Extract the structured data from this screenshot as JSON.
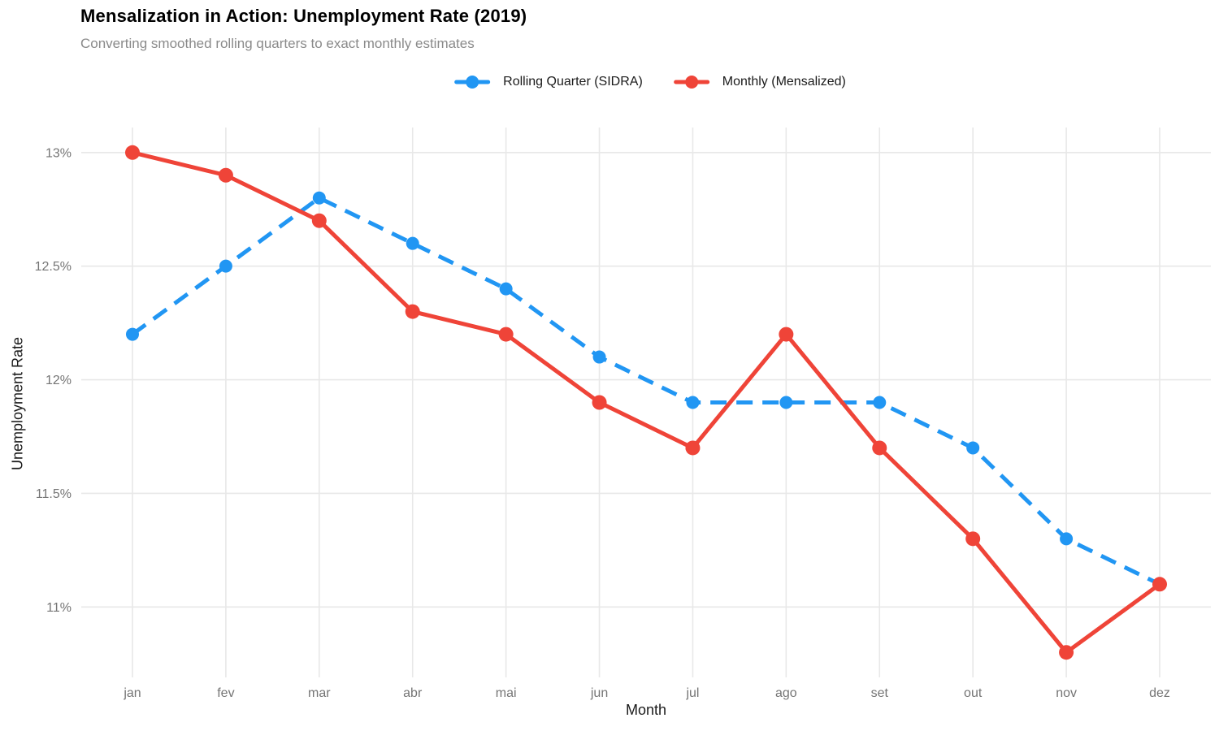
{
  "chart_data": {
    "type": "line",
    "title": "Mensalization in Action: Unemployment Rate (2019)",
    "subtitle": "Converting smoothed rolling quarters to exact monthly estimates",
    "xlabel": "Month",
    "ylabel": "Unemployment Rate",
    "categories": [
      "jan",
      "fev",
      "mar",
      "abr",
      "mai",
      "jun",
      "jul",
      "ago",
      "set",
      "out",
      "nov",
      "dez"
    ],
    "y_ticks": [
      {
        "value": 11,
        "label": "11%"
      },
      {
        "value": 11.5,
        "label": "11.5%"
      },
      {
        "value": 12,
        "label": "12%"
      },
      {
        "value": 12.5,
        "label": "12.5%"
      },
      {
        "value": 13,
        "label": "13%"
      }
    ],
    "ylim": [
      10.69,
      13.11
    ],
    "grid": true,
    "legend_position": "top-center",
    "gridline_color": "#e8e8e8",
    "tick_label_color": "#757575",
    "series": [
      {
        "name": "Rolling Quarter (SIDRA)",
        "color": "#2196f3",
        "line_style": "dashed",
        "values": [
          12.2,
          12.5,
          12.8,
          12.6,
          12.4,
          12.1,
          11.9,
          11.9,
          11.9,
          11.7,
          11.3,
          11.1
        ]
      },
      {
        "name": "Monthly (Mensalized)",
        "color": "#ef4438",
        "line_style": "solid",
        "values": [
          13.0,
          12.9,
          12.7,
          12.3,
          12.2,
          11.9,
          11.7,
          12.2,
          11.7,
          11.3,
          10.8,
          11.1
        ]
      }
    ]
  }
}
